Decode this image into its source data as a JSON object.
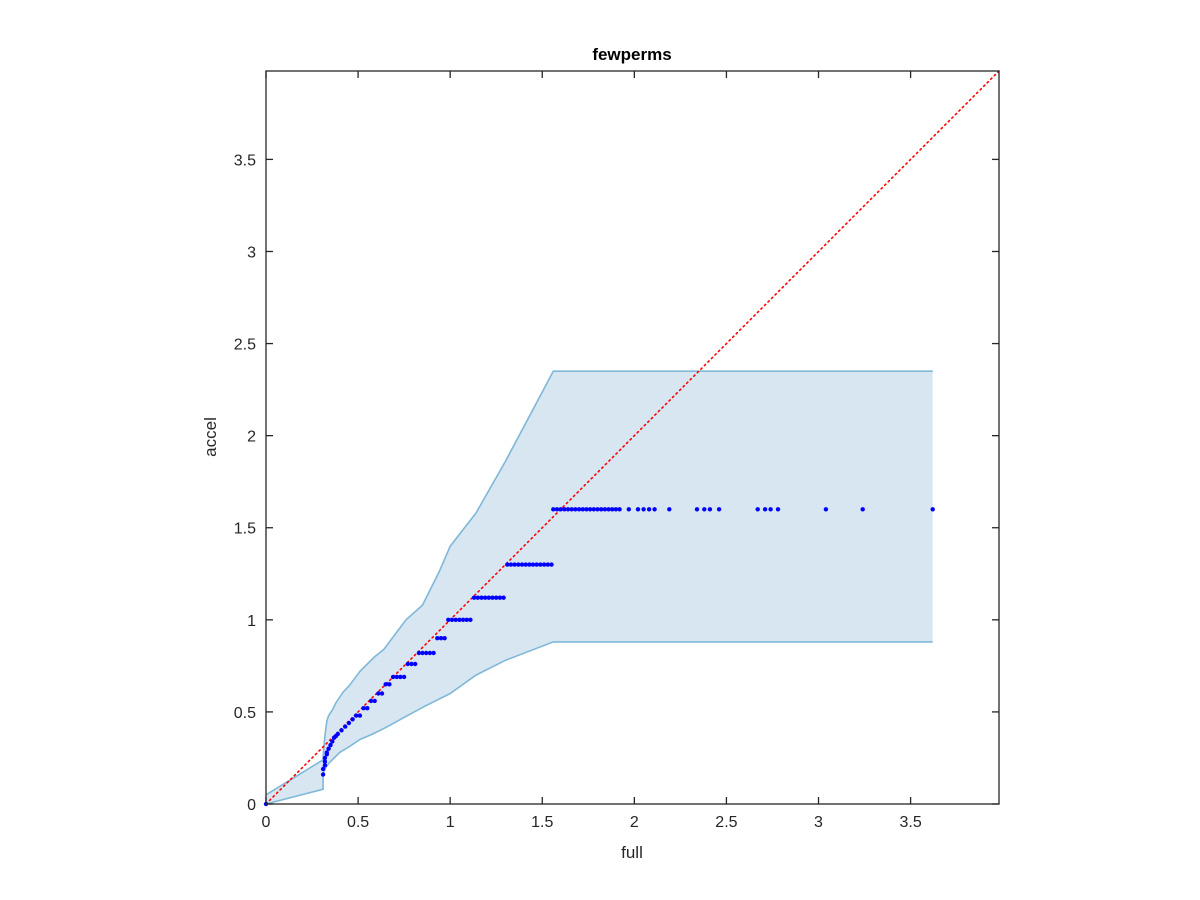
{
  "chart_data": {
    "type": "scatter",
    "title": "fewperms",
    "xlabel": "full",
    "ylabel": "accel",
    "xlim": [
      0,
      3.98
    ],
    "ylim": [
      0,
      3.98
    ],
    "xticks": [
      0,
      0.5,
      1,
      1.5,
      2,
      2.5,
      3,
      3.5
    ],
    "xtick_labels": [
      "0",
      "0.5",
      "1",
      "1.5",
      "2",
      "2.5",
      "3",
      "3.5"
    ],
    "yticks": [
      0,
      0.5,
      1,
      1.5,
      2,
      2.5,
      3,
      3.5
    ],
    "ytick_labels": [
      "0",
      "0.5",
      "1",
      "1.5",
      "2",
      "2.5",
      "3",
      "3.5"
    ],
    "grid": false,
    "colors": {
      "points": "#0000ff",
      "band_fill": "#d8e6f2",
      "band_edge": "#7fb8d8",
      "reference_line": "#ff0000"
    },
    "reference_line": {
      "style": "dotted",
      "from": [
        0,
        0
      ],
      "to": [
        3.98,
        3.98
      ]
    },
    "band": {
      "upper": [
        [
          0,
          0.05
        ],
        [
          0.31,
          0.24
        ],
        [
          0.31,
          0.26
        ],
        [
          0.32,
          0.37
        ],
        [
          0.33,
          0.45
        ],
        [
          0.34,
          0.48
        ],
        [
          0.36,
          0.51
        ],
        [
          0.38,
          0.55
        ],
        [
          0.4,
          0.58
        ],
        [
          0.42,
          0.61
        ],
        [
          0.45,
          0.64
        ],
        [
          0.48,
          0.68
        ],
        [
          0.51,
          0.72
        ],
        [
          0.55,
          0.76
        ],
        [
          0.59,
          0.8
        ],
        [
          0.64,
          0.84
        ],
        [
          0.7,
          0.92
        ],
        [
          0.76,
          1.0
        ],
        [
          0.85,
          1.08
        ],
        [
          0.94,
          1.26
        ],
        [
          1.0,
          1.4
        ],
        [
          1.14,
          1.58
        ],
        [
          1.3,
          1.86
        ],
        [
          1.56,
          2.35
        ],
        [
          3.62,
          2.35
        ]
      ],
      "lower": [
        [
          0,
          0.0
        ],
        [
          0.31,
          0.08
        ],
        [
          0.31,
          0.16
        ],
        [
          0.32,
          0.19
        ],
        [
          0.34,
          0.22
        ],
        [
          0.37,
          0.25
        ],
        [
          0.4,
          0.28
        ],
        [
          0.45,
          0.31
        ],
        [
          0.51,
          0.35
        ],
        [
          0.58,
          0.38
        ],
        [
          0.66,
          0.42
        ],
        [
          0.75,
          0.47
        ],
        [
          0.86,
          0.53
        ],
        [
          1.0,
          0.6
        ],
        [
          1.14,
          0.7
        ],
        [
          1.3,
          0.78
        ],
        [
          1.56,
          0.88
        ],
        [
          3.62,
          0.88
        ]
      ]
    },
    "series": [
      {
        "x": [
          0,
          0.31,
          0.31,
          0.32,
          0.32,
          0.32,
          0.33,
          0.33,
          0.34,
          0.35,
          0.36,
          0.37,
          0.38,
          0.39,
          0.41,
          0.43,
          0.45,
          0.47,
          0.49,
          0.51,
          0.53,
          0.55,
          0.57,
          0.59,
          0.61,
          0.63,
          0.65,
          0.67,
          0.69,
          0.71,
          0.73,
          0.75,
          0.77,
          0.79,
          0.81,
          0.83,
          0.85,
          0.87,
          0.89,
          0.91,
          0.93,
          0.95,
          0.97,
          0.99,
          1.01,
          1.03,
          1.05,
          1.07,
          1.09,
          1.11,
          1.13,
          1.15,
          1.17,
          1.19,
          1.21,
          1.23,
          1.25,
          1.27,
          1.29,
          1.31,
          1.33,
          1.35,
          1.37,
          1.39,
          1.41,
          1.43,
          1.45,
          1.47,
          1.49,
          1.51,
          1.53,
          1.55,
          1.56,
          1.58,
          1.6,
          1.62,
          1.64,
          1.66,
          1.68,
          1.7,
          1.72,
          1.74,
          1.76,
          1.78,
          1.8,
          1.82,
          1.84,
          1.86,
          1.88,
          1.9,
          1.92,
          1.97,
          2.02,
          2.05,
          2.08,
          2.11,
          2.19,
          2.34,
          2.38,
          2.41,
          2.46,
          2.67,
          2.71,
          2.74,
          2.78,
          3.04,
          3.24,
          3.62
        ],
        "y": [
          0,
          0.16,
          0.19,
          0.21,
          0.23,
          0.25,
          0.27,
          0.28,
          0.3,
          0.32,
          0.34,
          0.36,
          0.37,
          0.38,
          0.4,
          0.42,
          0.44,
          0.46,
          0.48,
          0.48,
          0.52,
          0.52,
          0.56,
          0.56,
          0.6,
          0.6,
          0.65,
          0.65,
          0.69,
          0.69,
          0.69,
          0.69,
          0.76,
          0.76,
          0.76,
          0.82,
          0.82,
          0.82,
          0.82,
          0.82,
          0.9,
          0.9,
          0.9,
          1.0,
          1.0,
          1.0,
          1.0,
          1.0,
          1.0,
          1.0,
          1.12,
          1.12,
          1.12,
          1.12,
          1.12,
          1.12,
          1.12,
          1.12,
          1.12,
          1.3,
          1.3,
          1.3,
          1.3,
          1.3,
          1.3,
          1.3,
          1.3,
          1.3,
          1.3,
          1.3,
          1.3,
          1.3,
          1.6,
          1.6,
          1.6,
          1.6,
          1.6,
          1.6,
          1.6,
          1.6,
          1.6,
          1.6,
          1.6,
          1.6,
          1.6,
          1.6,
          1.6,
          1.6,
          1.6,
          1.6,
          1.6,
          1.6,
          1.6,
          1.6,
          1.6,
          1.6,
          1.6,
          1.6,
          1.6,
          1.6,
          1.6,
          1.6,
          1.6,
          1.6,
          1.6,
          1.6,
          1.6,
          1.6
        ]
      }
    ]
  }
}
